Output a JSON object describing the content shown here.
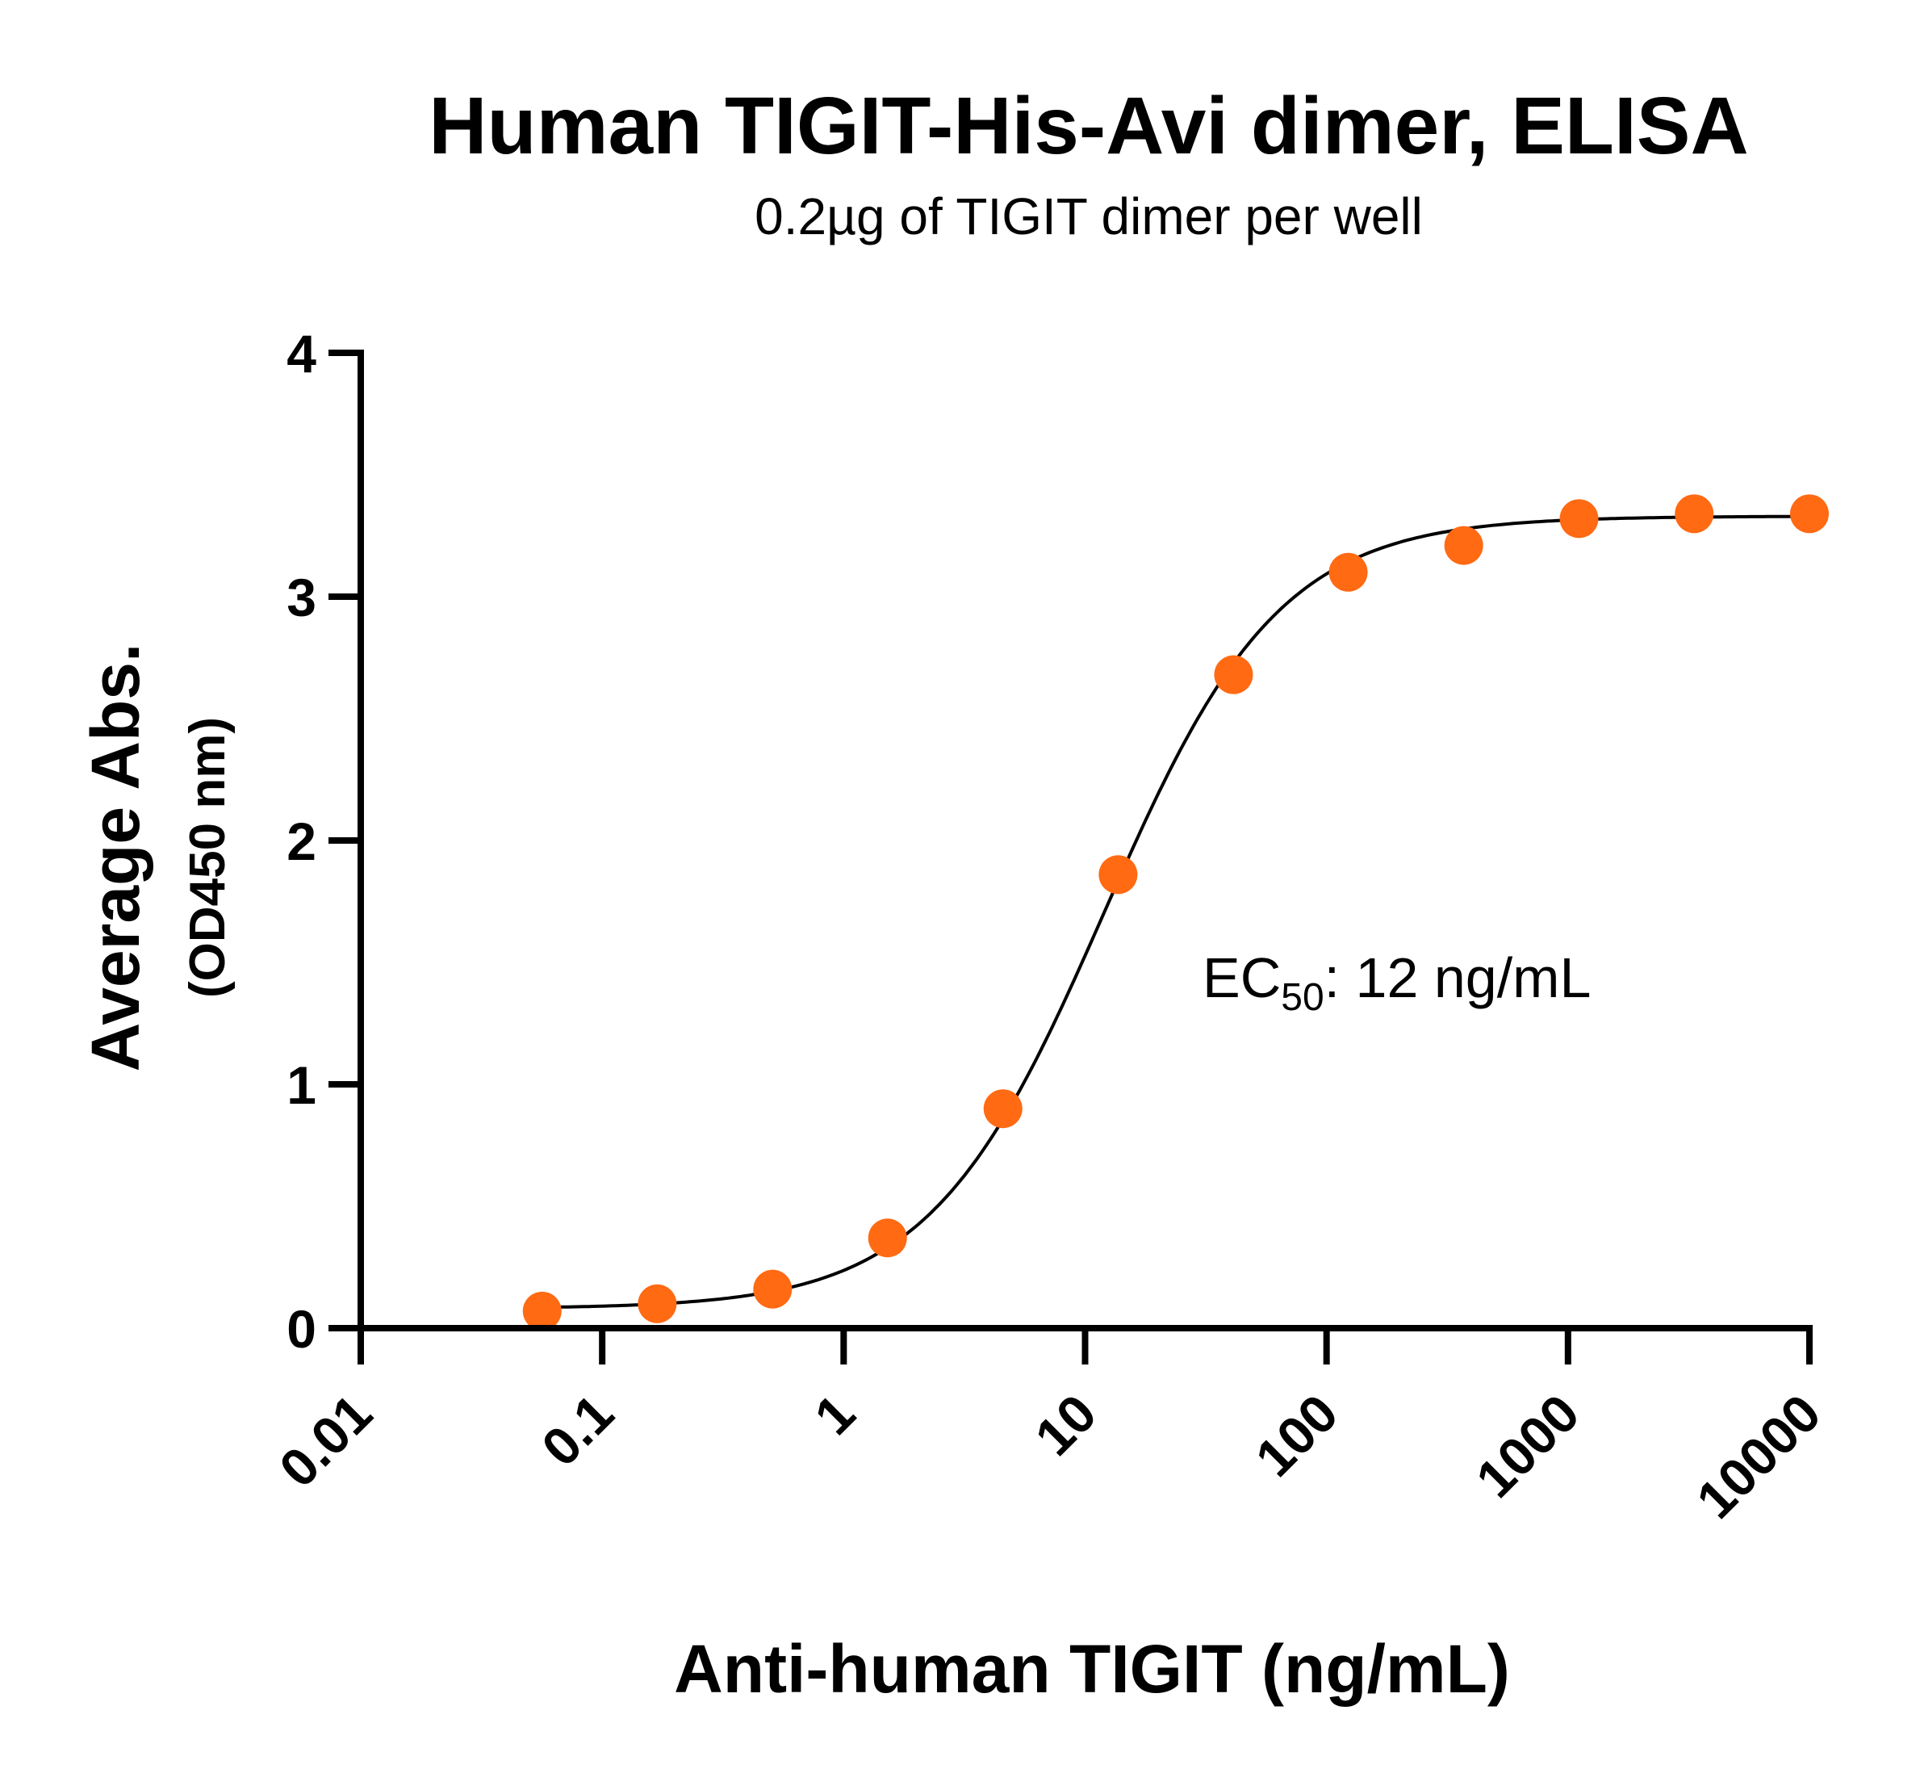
{
  "chart_data": {
    "type": "scatter",
    "title": "Human TIGIT-His-Avi dimer, ELISA",
    "subtitle": "0.2µg of TIGIT dimer per well",
    "xlabel": "Anti-human TIGIT (ng/mL)",
    "ylabel": "Average Abs.",
    "ylabel_sub": "(OD450 nm)",
    "x_scale": "log10",
    "xlim": [
      0.01,
      10000
    ],
    "ylim": [
      0,
      4
    ],
    "x_ticks": [
      {
        "value": 0.01,
        "label": "0.01"
      },
      {
        "value": 0.1,
        "label": "0.1"
      },
      {
        "value": 1,
        "label": "1"
      },
      {
        "value": 10,
        "label": "10"
      },
      {
        "value": 100,
        "label": "100"
      },
      {
        "value": 1000,
        "label": "1000"
      },
      {
        "value": 10000,
        "label": "10000"
      }
    ],
    "y_ticks": [
      {
        "value": 0,
        "label": "0"
      },
      {
        "value": 1,
        "label": "1"
      },
      {
        "value": 2,
        "label": "2"
      },
      {
        "value": 3,
        "label": "3"
      },
      {
        "value": 4,
        "label": "4"
      }
    ],
    "grid": false,
    "point_color": "#FF6A13",
    "curve_color": "#000000",
    "points": [
      {
        "x": 0.0564,
        "y": 0.07
      },
      {
        "x": 0.169,
        "y": 0.1
      },
      {
        "x": 0.508,
        "y": 0.16
      },
      {
        "x": 1.52,
        "y": 0.37
      },
      {
        "x": 4.57,
        "y": 0.9
      },
      {
        "x": 13.7,
        "y": 1.86
      },
      {
        "x": 41.2,
        "y": 2.68
      },
      {
        "x": 123,
        "y": 3.1
      },
      {
        "x": 370,
        "y": 3.21
      },
      {
        "x": 1111,
        "y": 3.32
      },
      {
        "x": 3333,
        "y": 3.34
      },
      {
        "x": 10000,
        "y": 3.34
      }
    ],
    "fit": {
      "model": "4PL",
      "bottom": 0.08,
      "top": 3.33,
      "ec50": 12,
      "hill": 1.2,
      "x_range": [
        0.0564,
        10000
      ]
    },
    "annotation": {
      "prefix": "EC",
      "subscript": "50",
      "suffix": ": 12 ng/mL"
    }
  }
}
